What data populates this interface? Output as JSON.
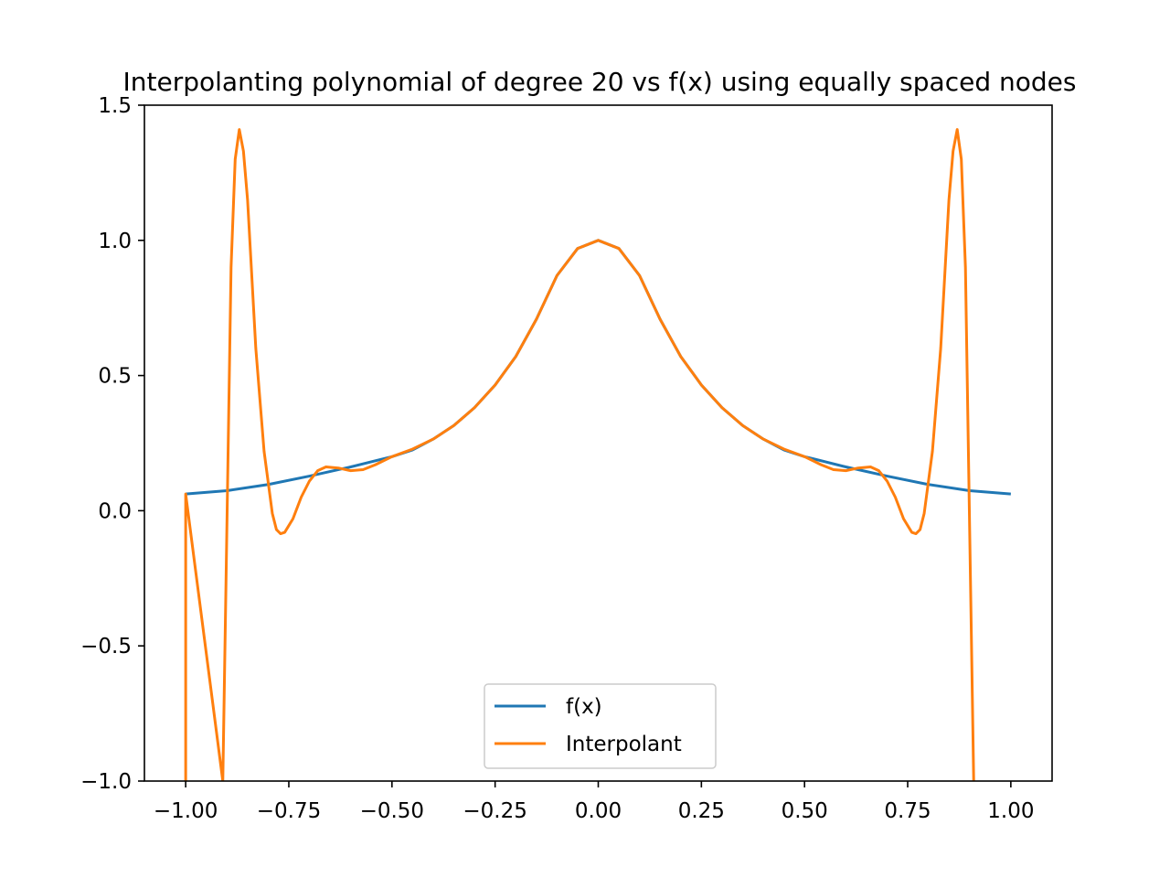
{
  "chart_data": {
    "type": "line",
    "title": "Interpolanting polynomial of degree 20 vs f(x) using equally spaced nodes",
    "xlabel": "",
    "ylabel": "",
    "xlim": [
      -1.1,
      1.1
    ],
    "ylim": [
      -1.0,
      1.5
    ],
    "x_ticks": [
      -1.0,
      -0.75,
      -0.5,
      -0.25,
      0.0,
      0.25,
      0.5,
      0.75,
      1.0
    ],
    "x_tick_labels": [
      "−1.00",
      "−0.75",
      "−0.50",
      "−0.25",
      "0.00",
      "0.25",
      "0.50",
      "0.75",
      "1.00"
    ],
    "y_ticks": [
      -1.0,
      -0.5,
      0.0,
      0.5,
      1.0,
      1.5
    ],
    "y_tick_labels": [
      "−1.0",
      "−0.5",
      "0.0",
      "0.5",
      "1.0",
      "1.5"
    ],
    "grid": false,
    "legend_position": "lower center",
    "series": [
      {
        "name": "f(x)",
        "color": "#1f77b4",
        "points": [
          [
            -1.0,
            0.062
          ],
          [
            -0.9,
            0.074
          ],
          [
            -0.8,
            0.097
          ],
          [
            -0.7,
            0.128
          ],
          [
            -0.6,
            0.162
          ],
          [
            -0.5,
            0.2
          ],
          [
            -0.45,
            0.225
          ],
          [
            -0.4,
            0.265
          ],
          [
            -0.35,
            0.315
          ],
          [
            -0.3,
            0.381
          ],
          [
            -0.25,
            0.465
          ],
          [
            -0.2,
            0.57
          ],
          [
            -0.15,
            0.708
          ],
          [
            -0.1,
            0.87
          ],
          [
            -0.05,
            0.97
          ],
          [
            0.0,
            1.0
          ],
          [
            0.05,
            0.97
          ],
          [
            0.1,
            0.87
          ],
          [
            0.15,
            0.708
          ],
          [
            0.2,
            0.57
          ],
          [
            0.25,
            0.465
          ],
          [
            0.3,
            0.381
          ],
          [
            0.35,
            0.315
          ],
          [
            0.4,
            0.265
          ],
          [
            0.45,
            0.225
          ],
          [
            0.5,
            0.2
          ],
          [
            0.6,
            0.162
          ],
          [
            0.7,
            0.128
          ],
          [
            0.8,
            0.097
          ],
          [
            0.9,
            0.074
          ],
          [
            1.0,
            0.062
          ]
        ]
      },
      {
        "name": "Interpolant",
        "color": "#ff7f0e",
        "points": [
          [
            -1.0,
            -1.0
          ],
          [
            -1.0,
            0.062
          ],
          [
            -0.91,
            -1.0
          ],
          [
            -0.89,
            0.9
          ],
          [
            -0.88,
            1.3
          ],
          [
            -0.87,
            1.41
          ],
          [
            -0.86,
            1.33
          ],
          [
            -0.85,
            1.15
          ],
          [
            -0.83,
            0.6
          ],
          [
            -0.81,
            0.22
          ],
          [
            -0.79,
            -0.01
          ],
          [
            -0.78,
            -0.07
          ],
          [
            -0.77,
            -0.085
          ],
          [
            -0.76,
            -0.08
          ],
          [
            -0.74,
            -0.03
          ],
          [
            -0.72,
            0.05
          ],
          [
            -0.7,
            0.11
          ],
          [
            -0.68,
            0.148
          ],
          [
            -0.66,
            0.162
          ],
          [
            -0.63,
            0.158
          ],
          [
            -0.6,
            0.148
          ],
          [
            -0.57,
            0.152
          ],
          [
            -0.54,
            0.17
          ],
          [
            -0.5,
            0.2
          ],
          [
            -0.45,
            0.228
          ],
          [
            -0.4,
            0.265
          ],
          [
            -0.35,
            0.315
          ],
          [
            -0.3,
            0.381
          ],
          [
            -0.25,
            0.465
          ],
          [
            -0.2,
            0.57
          ],
          [
            -0.15,
            0.708
          ],
          [
            -0.1,
            0.87
          ],
          [
            -0.05,
            0.97
          ],
          [
            0.0,
            1.0
          ],
          [
            0.05,
            0.97
          ],
          [
            0.1,
            0.87
          ],
          [
            0.15,
            0.708
          ],
          [
            0.2,
            0.57
          ],
          [
            0.25,
            0.465
          ],
          [
            0.3,
            0.381
          ],
          [
            0.35,
            0.315
          ],
          [
            0.4,
            0.265
          ],
          [
            0.45,
            0.228
          ],
          [
            0.5,
            0.2
          ],
          [
            0.54,
            0.17
          ],
          [
            0.57,
            0.152
          ],
          [
            0.6,
            0.148
          ],
          [
            0.63,
            0.158
          ],
          [
            0.66,
            0.162
          ],
          [
            0.68,
            0.148
          ],
          [
            0.7,
            0.11
          ],
          [
            0.72,
            0.05
          ],
          [
            0.74,
            -0.03
          ],
          [
            0.76,
            -0.08
          ],
          [
            0.77,
            -0.085
          ],
          [
            0.78,
            -0.07
          ],
          [
            0.79,
            -0.01
          ],
          [
            0.81,
            0.22
          ],
          [
            0.83,
            0.6
          ],
          [
            0.85,
            1.15
          ],
          [
            0.86,
            1.33
          ],
          [
            0.87,
            1.41
          ],
          [
            0.88,
            1.3
          ],
          [
            0.89,
            0.9
          ],
          [
            0.91,
            -1.0
          ]
        ]
      }
    ]
  }
}
